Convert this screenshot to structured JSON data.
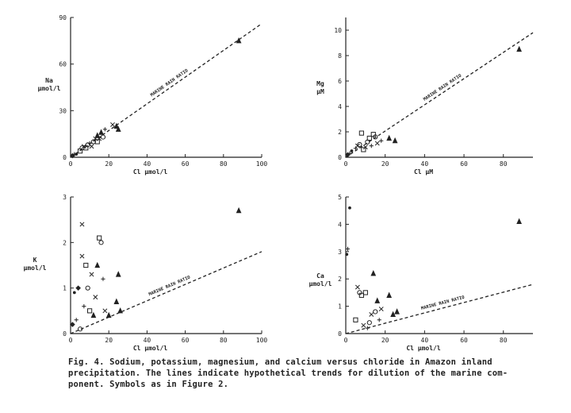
{
  "colors": {
    "ink": "#222222",
    "paper": "#ffffff"
  },
  "caption": {
    "line1": "Fig.  4.  Sodium, potassium, magnesium,  and  calcium  versus chloride in Amazon inland",
    "line2": "precipitation.  The lines indicate hypothetical trends for dilution of  the marine com-",
    "line3": "ponent.  Symbols as in Figure 2."
  },
  "chart_data": [
    {
      "type": "scatter",
      "panel": "Na",
      "xlabel": "Cl  μmol/l",
      "ylabel": "Na μmol/l",
      "xlim": [
        0,
        100
      ],
      "ylim": [
        0,
        90
      ],
      "xticks": [
        0,
        20,
        40,
        60,
        80,
        100
      ],
      "yticks": [
        0,
        30,
        60,
        90
      ],
      "line": {
        "label": "MARINE RAIN RATIO",
        "x": [
          0,
          100
        ],
        "y": [
          0,
          86
        ]
      },
      "points": [
        {
          "x": 1,
          "y": 1,
          "m": "diamond"
        },
        {
          "x": 2,
          "y": 2,
          "m": "plus"
        },
        {
          "x": 3,
          "y": 2,
          "m": "dot"
        },
        {
          "x": 5,
          "y": 4,
          "m": "square"
        },
        {
          "x": 6,
          "y": 6,
          "m": "circle"
        },
        {
          "x": 7,
          "y": 7,
          "m": "x"
        },
        {
          "x": 8,
          "y": 6,
          "m": "square"
        },
        {
          "x": 9,
          "y": 8,
          "m": "circle"
        },
        {
          "x": 10,
          "y": 9,
          "m": "plus"
        },
        {
          "x": 11,
          "y": 7,
          "m": "x"
        },
        {
          "x": 12,
          "y": 10,
          "m": "circle"
        },
        {
          "x": 13,
          "y": 12,
          "m": "x"
        },
        {
          "x": 14,
          "y": 14,
          "m": "triangle"
        },
        {
          "x": 14,
          "y": 10,
          "m": "square"
        },
        {
          "x": 15,
          "y": 12,
          "m": "x"
        },
        {
          "x": 16,
          "y": 16,
          "m": "triangle"
        },
        {
          "x": 17,
          "y": 13,
          "m": "circle"
        },
        {
          "x": 18,
          "y": 18,
          "m": "plus"
        },
        {
          "x": 22,
          "y": 21,
          "m": "x"
        },
        {
          "x": 24,
          "y": 20,
          "m": "triangle"
        },
        {
          "x": 25,
          "y": 18,
          "m": "triangle"
        },
        {
          "x": 88,
          "y": 75,
          "m": "triangle"
        }
      ]
    },
    {
      "type": "scatter",
      "panel": "Mg",
      "xlabel": "Cl  μM",
      "ylabel": "Mg μM",
      "xlim": [
        0,
        95
      ],
      "ylim": [
        0,
        11
      ],
      "xticks": [
        0,
        20,
        40,
        60,
        80
      ],
      "yticks": [
        0,
        2,
        4,
        6,
        8,
        10
      ],
      "line": {
        "label": "MARINE RAIN RATIO",
        "x": [
          0,
          95
        ],
        "y": [
          0,
          9.8
        ]
      },
      "points": [
        {
          "x": 1,
          "y": 0.2,
          "m": "diamond"
        },
        {
          "x": 2,
          "y": 0.3,
          "m": "plus"
        },
        {
          "x": 3,
          "y": 0.5,
          "m": "dot"
        },
        {
          "x": 5,
          "y": 0.7,
          "m": "plus"
        },
        {
          "x": 6,
          "y": 0.9,
          "m": "x"
        },
        {
          "x": 7,
          "y": 1.0,
          "m": "circle"
        },
        {
          "x": 8,
          "y": 1.9,
          "m": "square"
        },
        {
          "x": 9,
          "y": 0.6,
          "m": "square"
        },
        {
          "x": 10,
          "y": 0.8,
          "m": "x"
        },
        {
          "x": 11,
          "y": 1.2,
          "m": "circle"
        },
        {
          "x": 12,
          "y": 1.5,
          "m": "square"
        },
        {
          "x": 13,
          "y": 0.9,
          "m": "plus"
        },
        {
          "x": 14,
          "y": 1.8,
          "m": "square"
        },
        {
          "x": 15,
          "y": 1.6,
          "m": "circle"
        },
        {
          "x": 16,
          "y": 1.1,
          "m": "x"
        },
        {
          "x": 18,
          "y": 1.3,
          "m": "plus"
        },
        {
          "x": 22,
          "y": 1.5,
          "m": "triangle"
        },
        {
          "x": 25,
          "y": 1.3,
          "m": "triangle"
        },
        {
          "x": 88,
          "y": 8.5,
          "m": "triangle"
        }
      ]
    },
    {
      "type": "scatter",
      "panel": "K",
      "xlabel": "Cl  μmol/l",
      "ylabel": "K μmol/l",
      "xlim": [
        0,
        100
      ],
      "ylim": [
        0,
        3
      ],
      "xticks": [
        0,
        20,
        40,
        60,
        80,
        100
      ],
      "yticks": [
        0,
        1,
        2,
        3
      ],
      "line": {
        "label": "MARINE RAIN RATIO",
        "x": [
          0,
          100
        ],
        "y": [
          0,
          1.8
        ]
      },
      "points": [
        {
          "x": 1,
          "y": 0.2,
          "m": "diamond"
        },
        {
          "x": 2,
          "y": 0.9,
          "m": "dot"
        },
        {
          "x": 3,
          "y": 0.3,
          "m": "plus"
        },
        {
          "x": 4,
          "y": 1.0,
          "m": "diamond"
        },
        {
          "x": 5,
          "y": 0.1,
          "m": "circle"
        },
        {
          "x": 6,
          "y": 1.7,
          "m": "x"
        },
        {
          "x": 6,
          "y": 2.4,
          "m": "x"
        },
        {
          "x": 7,
          "y": 0.6,
          "m": "plus"
        },
        {
          "x": 8,
          "y": 1.5,
          "m": "square"
        },
        {
          "x": 9,
          "y": 1.0,
          "m": "circle"
        },
        {
          "x": 10,
          "y": 0.5,
          "m": "square"
        },
        {
          "x": 11,
          "y": 1.3,
          "m": "x"
        },
        {
          "x": 12,
          "y": 0.4,
          "m": "triangle"
        },
        {
          "x": 13,
          "y": 0.8,
          "m": "x"
        },
        {
          "x": 14,
          "y": 1.5,
          "m": "triangle"
        },
        {
          "x": 15,
          "y": 2.1,
          "m": "square"
        },
        {
          "x": 16,
          "y": 2.0,
          "m": "circle"
        },
        {
          "x": 17,
          "y": 1.2,
          "m": "plus"
        },
        {
          "x": 18,
          "y": 0.5,
          "m": "x"
        },
        {
          "x": 20,
          "y": 0.4,
          "m": "triangle"
        },
        {
          "x": 24,
          "y": 0.7,
          "m": "triangle"
        },
        {
          "x": 25,
          "y": 1.3,
          "m": "triangle"
        },
        {
          "x": 26,
          "y": 0.5,
          "m": "triangle"
        },
        {
          "x": 88,
          "y": 2.7,
          "m": "triangle"
        }
      ]
    },
    {
      "type": "scatter",
      "panel": "Ca",
      "xlabel": "Cl  μmol/l",
      "ylabel": "Ca μmol/l",
      "xlim": [
        0,
        95
      ],
      "ylim": [
        0,
        5
      ],
      "xticks": [
        0,
        20,
        40,
        60,
        80
      ],
      "yticks": [
        0,
        1,
        2,
        3,
        4,
        5
      ],
      "line": {
        "label": "MARINE RAIN RATIO",
        "x": [
          0,
          95
        ],
        "y": [
          0,
          1.8
        ]
      },
      "points": [
        {
          "x": 0.5,
          "y": 2.9,
          "m": "dot"
        },
        {
          "x": 1,
          "y": 3.1,
          "m": "plus"
        },
        {
          "x": 2,
          "y": 4.6,
          "m": "dot"
        },
        {
          "x": 5,
          "y": 0.5,
          "m": "square"
        },
        {
          "x": 6,
          "y": 1.7,
          "m": "x"
        },
        {
          "x": 7,
          "y": 1.5,
          "m": "circle"
        },
        {
          "x": 8,
          "y": 1.4,
          "m": "square"
        },
        {
          "x": 9,
          "y": 0.3,
          "m": "x"
        },
        {
          "x": 10,
          "y": 1.5,
          "m": "square"
        },
        {
          "x": 11,
          "y": 0.2,
          "m": "plus"
        },
        {
          "x": 12,
          "y": 0.4,
          "m": "circle"
        },
        {
          "x": 13,
          "y": 0.7,
          "m": "x"
        },
        {
          "x": 14,
          "y": 2.2,
          "m": "triangle"
        },
        {
          "x": 15,
          "y": 0.8,
          "m": "circle"
        },
        {
          "x": 16,
          "y": 1.2,
          "m": "triangle"
        },
        {
          "x": 17,
          "y": 0.5,
          "m": "plus"
        },
        {
          "x": 18,
          "y": 0.9,
          "m": "x"
        },
        {
          "x": 22,
          "y": 1.4,
          "m": "triangle"
        },
        {
          "x": 24,
          "y": 0.7,
          "m": "triangle"
        },
        {
          "x": 26,
          "y": 0.8,
          "m": "triangle"
        },
        {
          "x": 88,
          "y": 4.1,
          "m": "triangle"
        }
      ]
    }
  ]
}
